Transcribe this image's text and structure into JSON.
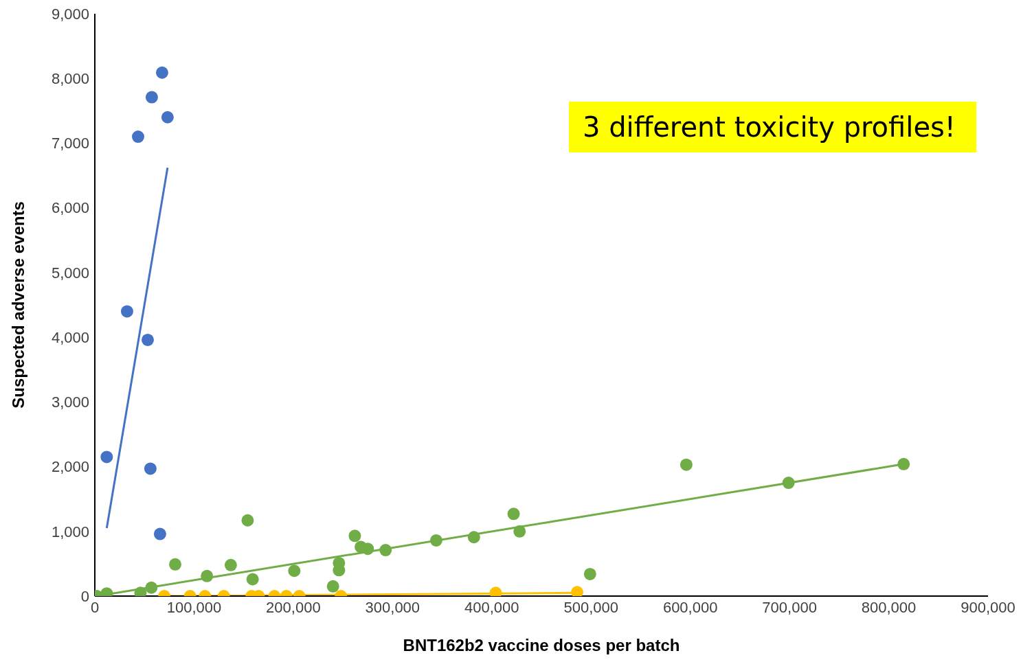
{
  "chart_data": {
    "type": "scatter",
    "xlabel": "BNT162b2 vaccine doses per batch",
    "ylabel": "Suspected adverse events",
    "annotations": [
      "3 different toxicity profiles!"
    ],
    "xlim": [
      0,
      900000
    ],
    "xticks": [
      {
        "value": 0,
        "label": "0"
      },
      {
        "value": 100000,
        "label": "100,000"
      },
      {
        "value": 200000,
        "label": "200,000"
      },
      {
        "value": 300000,
        "label": "300,000"
      },
      {
        "value": 400000,
        "label": "400,000"
      },
      {
        "value": 500000,
        "label": "500,000"
      },
      {
        "value": 600000,
        "label": "600,000"
      },
      {
        "value": 700000,
        "label": "700,000"
      },
      {
        "value": 800000,
        "label": "800,000"
      },
      {
        "value": 900000,
        "label": "900,000"
      }
    ],
    "ylim": [
      0,
      9000
    ],
    "yticks": [
      {
        "value": 0,
        "label": "0"
      },
      {
        "value": 1000,
        "label": "1,000"
      },
      {
        "value": 2000,
        "label": "2,000"
      },
      {
        "value": 3000,
        "label": "3,000"
      },
      {
        "value": 4000,
        "label": "4,000"
      },
      {
        "value": 5000,
        "label": "5,000"
      },
      {
        "value": 6000,
        "label": "6,000"
      },
      {
        "value": 7000,
        "label": "7,000"
      },
      {
        "value": 8000,
        "label": "8,000"
      },
      {
        "value": 9000,
        "label": "9,000"
      }
    ],
    "grid": false,
    "legend": false,
    "marker": "circle",
    "series": [
      {
        "color": "#4472c4",
        "x": [
          12000,
          32500,
          43600,
          53300,
          56000,
          57400,
          65700,
          67800,
          73300
        ],
        "values": [
          2150,
          4400,
          7100,
          3960,
          1970,
          7710,
          960,
          8090,
          7400
        ]
      },
      {
        "type": "line",
        "color": "#4472c4",
        "marker": "none",
        "x": [
          12000,
          73300
        ],
        "values": [
          1050,
          6620
        ]
      },
      {
        "color": "#70ad47",
        "x": [
          2000,
          12000,
          46000,
          57000,
          81000,
          113000,
          137000,
          154000,
          159000,
          201000,
          240000,
          246000,
          246000,
          262000,
          268000,
          275000,
          293000,
          344000,
          382000,
          422000,
          428000,
          499000,
          596000,
          699000,
          815000
        ],
        "values": [
          0,
          40,
          50,
          130,
          490,
          310,
          480,
          1170,
          260,
          390,
          150,
          510,
          400,
          930,
          760,
          730,
          710,
          860,
          910,
          1270,
          1000,
          340,
          2030,
          1750,
          2040
        ]
      },
      {
        "type": "line",
        "color": "#70ad47",
        "marker": "none",
        "x": [
          2000,
          815000
        ],
        "values": [
          0,
          2040
        ]
      },
      {
        "color": "#ffc000",
        "x": [
          70000,
          96000,
          111000,
          130000,
          158000,
          165000,
          181000,
          193000,
          206000,
          248000,
          404000,
          486000
        ],
        "values": [
          0,
          0,
          0,
          0,
          0,
          0,
          0,
          0,
          0,
          0,
          50,
          60
        ]
      },
      {
        "type": "line",
        "color": "#ffc000",
        "marker": "none",
        "x": [
          70000,
          486000
        ],
        "values": [
          0,
          50
        ]
      }
    ]
  }
}
